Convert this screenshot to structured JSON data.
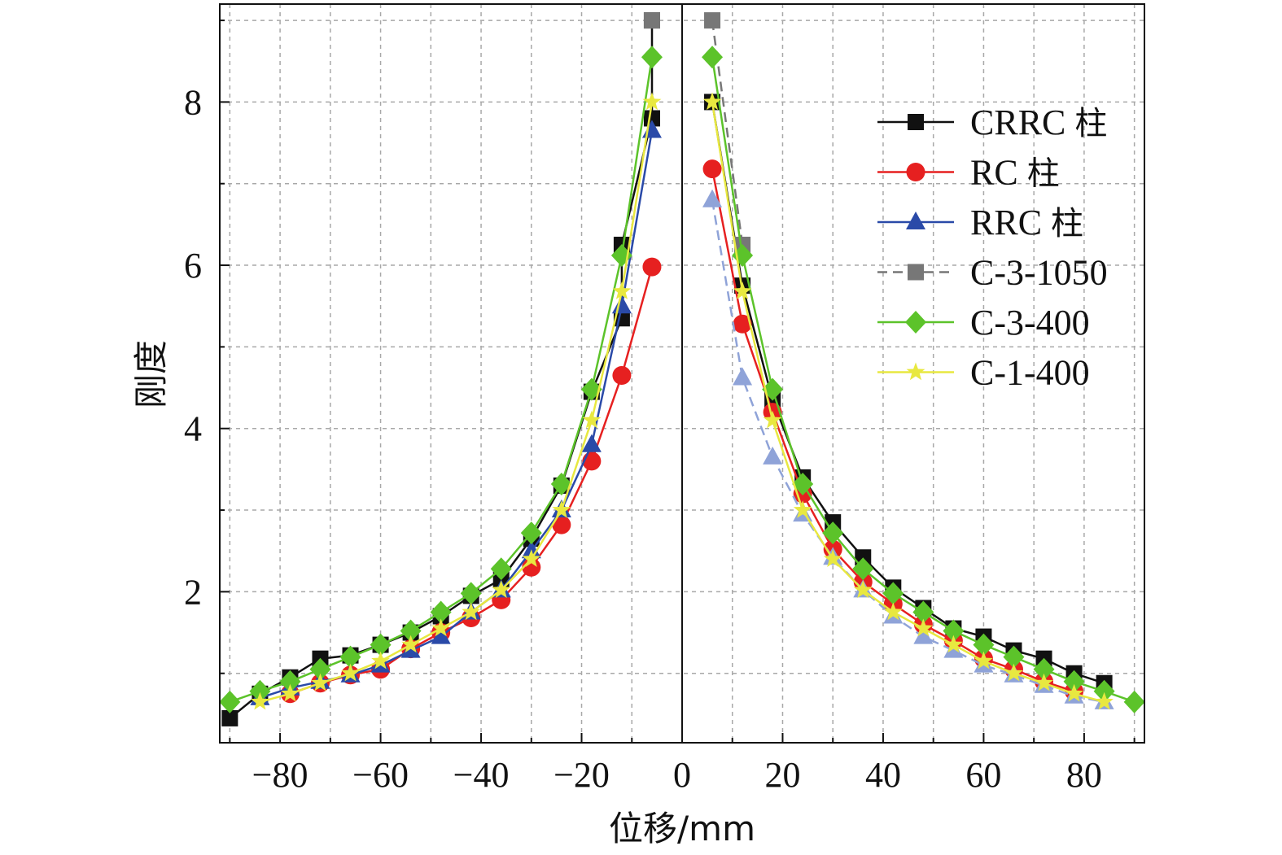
{
  "chart_data": {
    "type": "line",
    "xlabel": "位移/mm",
    "ylabel": "刚度",
    "xlim": [
      -92,
      92
    ],
    "ylim": [
      0.15,
      9.2
    ],
    "xticks": [
      -80,
      -60,
      -40,
      -20,
      0,
      20,
      40,
      60,
      80
    ],
    "yticks": [
      2,
      4,
      6,
      8
    ],
    "grid": true,
    "legend_position": "top-right",
    "series": [
      {
        "name": "CRRC 柱",
        "color": "#111111",
        "marker": "square",
        "dash": "solid",
        "negative": [
          [
            -90,
            0.45
          ],
          [
            -84,
            0.75
          ],
          [
            -78,
            0.95
          ],
          [
            -72,
            1.18
          ],
          [
            -66,
            1.22
          ],
          [
            -60,
            1.35
          ],
          [
            -54,
            1.5
          ],
          [
            -48,
            1.7
          ],
          [
            -42,
            1.95
          ],
          [
            -36,
            2.15
          ],
          [
            -30,
            2.65
          ],
          [
            -24,
            3.3
          ],
          [
            -18,
            4.45
          ],
          [
            -12,
            5.35
          ],
          [
            -12,
            6.25
          ],
          [
            -6,
            7.8
          ],
          [
            -6,
            9.0
          ]
        ],
        "positive": [
          [
            6,
            8.0
          ],
          [
            12,
            5.75
          ],
          [
            18,
            4.35
          ],
          [
            24,
            3.4
          ],
          [
            30,
            2.85
          ],
          [
            36,
            2.42
          ],
          [
            42,
            2.05
          ],
          [
            48,
            1.8
          ],
          [
            54,
            1.55
          ],
          [
            60,
            1.45
          ],
          [
            66,
            1.28
          ],
          [
            72,
            1.18
          ],
          [
            78,
            1.0
          ],
          [
            84,
            0.88
          ]
        ]
      },
      {
        "name": "RC 柱",
        "color": "#e62020",
        "marker": "circle",
        "dash": "solid",
        "negative": [
          [
            -78,
            0.75
          ],
          [
            -72,
            0.88
          ],
          [
            -66,
            0.98
          ],
          [
            -60,
            1.05
          ],
          [
            -54,
            1.3
          ],
          [
            -48,
            1.5
          ],
          [
            -42,
            1.68
          ],
          [
            -36,
            1.9
          ],
          [
            -30,
            2.3
          ],
          [
            -24,
            2.82
          ],
          [
            -18,
            3.6
          ],
          [
            -12,
            4.65
          ],
          [
            -6,
            5.98
          ]
        ],
        "positive": [
          [
            6,
            7.18
          ],
          [
            12,
            5.28
          ],
          [
            18,
            4.2
          ],
          [
            24,
            3.2
          ],
          [
            30,
            2.52
          ],
          [
            36,
            2.12
          ],
          [
            42,
            1.85
          ],
          [
            48,
            1.6
          ],
          [
            54,
            1.4
          ],
          [
            60,
            1.18
          ],
          [
            66,
            1.05
          ],
          [
            72,
            0.9
          ],
          [
            78,
            0.78
          ]
        ]
      },
      {
        "name": "RRC 柱",
        "color": "#2a4aa8",
        "marker": "triangle",
        "dash": "solid",
        "positive_color": "#8fa3d8",
        "positive_dash": "dashed",
        "negative": [
          [
            -84,
            0.7
          ],
          [
            -78,
            0.82
          ],
          [
            -72,
            0.9
          ],
          [
            -66,
            0.98
          ],
          [
            -60,
            1.1
          ],
          [
            -54,
            1.28
          ],
          [
            -48,
            1.45
          ],
          [
            -42,
            1.75
          ],
          [
            -36,
            2.02
          ],
          [
            -30,
            2.5
          ],
          [
            -24,
            3.0
          ],
          [
            -18,
            3.8
          ],
          [
            -12,
            5.5
          ],
          [
            -6,
            7.65
          ]
        ],
        "positive": [
          [
            6,
            6.8
          ],
          [
            12,
            4.62
          ],
          [
            18,
            3.65
          ],
          [
            24,
            2.95
          ],
          [
            30,
            2.42
          ],
          [
            36,
            2.02
          ],
          [
            42,
            1.7
          ],
          [
            48,
            1.45
          ],
          [
            54,
            1.28
          ],
          [
            60,
            1.1
          ],
          [
            66,
            0.98
          ],
          [
            72,
            0.85
          ],
          [
            78,
            0.72
          ],
          [
            84,
            0.65
          ]
        ]
      },
      {
        "name": "C-3-1050",
        "color": "#777777",
        "marker": "square",
        "dash": "dashed",
        "negative": [
          [
            -6,
            9.0
          ]
        ],
        "positive": [
          [
            6,
            9.0
          ],
          [
            12,
            6.25
          ]
        ]
      },
      {
        "name": "C-3-400",
        "color": "#5cc32a",
        "marker": "diamond",
        "dash": "solid",
        "negative": [
          [
            -90,
            0.65
          ],
          [
            -84,
            0.78
          ],
          [
            -78,
            0.9
          ],
          [
            -72,
            1.05
          ],
          [
            -66,
            1.2
          ],
          [
            -60,
            1.35
          ],
          [
            -54,
            1.52
          ],
          [
            -48,
            1.75
          ],
          [
            -42,
            1.98
          ],
          [
            -36,
            2.28
          ],
          [
            -30,
            2.72
          ],
          [
            -24,
            3.32
          ],
          [
            -18,
            4.48
          ],
          [
            -12,
            6.12
          ],
          [
            -6,
            8.55
          ]
        ],
        "positive": [
          [
            6,
            8.55
          ],
          [
            12,
            6.12
          ],
          [
            18,
            4.48
          ],
          [
            24,
            3.32
          ],
          [
            30,
            2.72
          ],
          [
            36,
            2.28
          ],
          [
            42,
            1.98
          ],
          [
            48,
            1.75
          ],
          [
            54,
            1.52
          ],
          [
            60,
            1.35
          ],
          [
            66,
            1.2
          ],
          [
            72,
            1.05
          ],
          [
            78,
            0.9
          ],
          [
            84,
            0.78
          ],
          [
            90,
            0.65
          ]
        ]
      },
      {
        "name": "C-1-400",
        "color": "#e8e840",
        "marker": "star",
        "dash": "solid",
        "negative": [
          [
            -84,
            0.65
          ],
          [
            -78,
            0.75
          ],
          [
            -72,
            0.88
          ],
          [
            -66,
            1.0
          ],
          [
            -60,
            1.15
          ],
          [
            -54,
            1.35
          ],
          [
            -48,
            1.55
          ],
          [
            -42,
            1.75
          ],
          [
            -36,
            2.02
          ],
          [
            -30,
            2.4
          ],
          [
            -24,
            3.0
          ],
          [
            -18,
            4.1
          ],
          [
            -12,
            5.68
          ],
          [
            -6,
            8.0
          ]
        ],
        "positive": [
          [
            6,
            8.0
          ],
          [
            12,
            5.68
          ],
          [
            18,
            4.1
          ],
          [
            24,
            3.0
          ],
          [
            30,
            2.4
          ],
          [
            36,
            2.02
          ],
          [
            42,
            1.75
          ],
          [
            48,
            1.55
          ],
          [
            54,
            1.35
          ],
          [
            60,
            1.15
          ],
          [
            66,
            1.0
          ],
          [
            72,
            0.88
          ],
          [
            78,
            0.75
          ],
          [
            84,
            0.65
          ]
        ]
      }
    ]
  }
}
